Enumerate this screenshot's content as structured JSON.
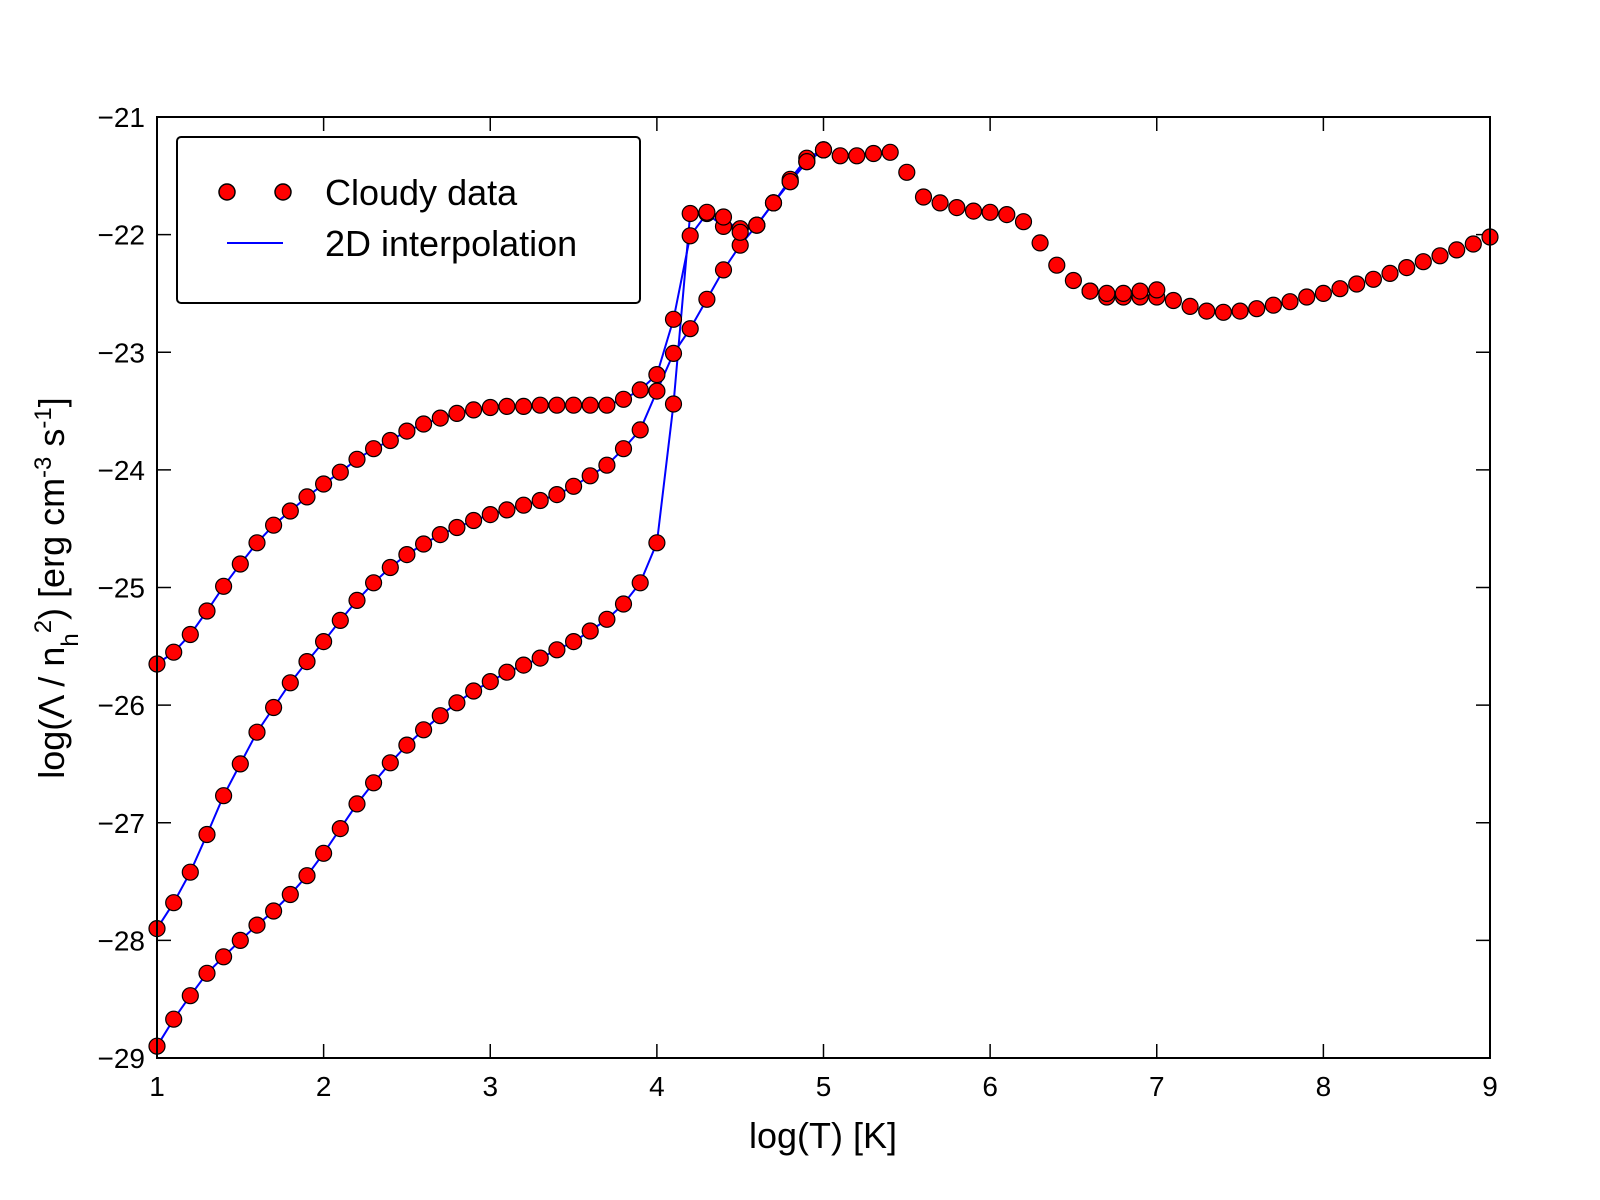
{
  "chart_data": {
    "type": "scatter",
    "xlabel": "log(T) [K]",
    "ylabel": {
      "parts": [
        {
          "text": "log(Λ / n",
          "shift": "normal"
        },
        {
          "text": "h",
          "shift": "sub"
        },
        {
          "text": "2",
          "shift": "super"
        },
        {
          "text": ") [erg cm",
          "shift": "normal"
        },
        {
          "text": "-3",
          "shift": "super"
        },
        {
          "text": " s",
          "shift": "normal"
        },
        {
          "text": "-1",
          "shift": "super"
        },
        {
          "text": "]",
          "shift": "normal"
        }
      ]
    },
    "xlim": [
      1,
      9
    ],
    "ylim": [
      -29,
      -21
    ],
    "xticks": [
      1,
      2,
      3,
      4,
      5,
      6,
      7,
      8,
      9
    ],
    "xtick_labels": [
      "1",
      "2",
      "3",
      "4",
      "5",
      "6",
      "7",
      "8",
      "9"
    ],
    "yticks": [
      -29,
      -28,
      -27,
      -26,
      -25,
      -24,
      -23,
      -22,
      -21
    ],
    "ytick_labels": [
      "−29",
      "−28",
      "−27",
      "−26",
      "−25",
      "−24",
      "−23",
      "−22",
      "−21"
    ],
    "legend": {
      "position": "top-left",
      "entries": [
        {
          "label": "Cloudy data",
          "marker": "circle",
          "color": "#ff0000"
        },
        {
          "label": "2D interpolation",
          "marker": "line",
          "color": "#0000ff"
        }
      ]
    },
    "colors": {
      "scatter": "#ff0000",
      "line": "#0000ff",
      "marker_edge": "#000000"
    },
    "series": [
      {
        "kind": "scatter+line",
        "x": [
          1.0,
          1.1,
          1.2,
          1.3,
          1.4,
          1.5,
          1.6,
          1.7,
          1.8,
          1.9,
          2.0,
          2.1,
          2.2,
          2.3,
          2.4,
          2.5,
          2.6,
          2.7,
          2.8,
          2.9,
          3.0,
          3.1,
          3.2,
          3.3,
          3.4,
          3.5,
          3.6,
          3.7,
          3.8,
          3.9,
          4.0,
          4.1,
          4.2,
          4.3,
          4.4,
          4.5,
          4.6,
          4.7,
          4.8,
          4.9,
          5.0
        ],
        "y": [
          -25.65,
          -25.55,
          -25.4,
          -25.2,
          -24.99,
          -24.8,
          -24.62,
          -24.47,
          -24.35,
          -24.23,
          -24.12,
          -24.02,
          -23.91,
          -23.82,
          -23.75,
          -23.67,
          -23.61,
          -23.56,
          -23.52,
          -23.49,
          -23.47,
          -23.46,
          -23.46,
          -23.45,
          -23.45,
          -23.45,
          -23.45,
          -23.45,
          -23.4,
          -23.32,
          -23.19,
          -22.72,
          -22.01,
          -21.82,
          -21.93,
          -21.95,
          -21.92,
          -21.73,
          -21.53,
          -21.35,
          -21.28
        ]
      },
      {
        "kind": "scatter+line",
        "x": [
          1.0,
          1.1,
          1.2,
          1.3,
          1.4,
          1.5,
          1.6,
          1.7,
          1.8,
          1.9,
          2.0,
          2.1,
          2.2,
          2.3,
          2.4,
          2.5,
          2.6,
          2.7,
          2.8,
          2.9,
          3.0,
          3.1,
          3.2,
          3.3,
          3.4,
          3.5,
          3.6,
          3.7,
          3.8,
          3.9,
          4.0,
          4.1,
          4.2,
          4.3,
          4.4,
          4.5,
          4.6,
          4.7,
          4.8,
          4.9,
          5.0
        ],
        "y": [
          -27.9,
          -27.68,
          -27.42,
          -27.1,
          -26.77,
          -26.5,
          -26.23,
          -26.02,
          -25.81,
          -25.63,
          -25.46,
          -25.28,
          -25.11,
          -24.96,
          -24.83,
          -24.72,
          -24.63,
          -24.55,
          -24.49,
          -24.43,
          -24.38,
          -24.34,
          -24.3,
          -24.26,
          -24.21,
          -24.14,
          -24.05,
          -23.96,
          -23.82,
          -23.66,
          -23.33,
          -23.01,
          -22.8,
          -22.55,
          -22.3,
          -22.09,
          -21.92,
          -21.73,
          -21.55,
          -21.38,
          -21.28
        ]
      },
      {
        "kind": "scatter+line",
        "x": [
          1.0,
          1.1,
          1.2,
          1.3,
          1.4,
          1.5,
          1.6,
          1.7,
          1.8,
          1.9,
          2.0,
          2.1,
          2.2,
          2.3,
          2.4,
          2.5,
          2.6,
          2.7,
          2.8,
          2.9,
          3.0,
          3.1,
          3.2,
          3.3,
          3.4,
          3.5,
          3.6,
          3.7,
          3.8,
          3.9,
          4.0,
          4.1,
          4.2,
          4.3,
          4.4,
          4.5,
          4.6,
          4.7,
          4.8,
          4.9,
          5.0
        ],
        "y": [
          -28.9,
          -28.67,
          -28.47,
          -28.28,
          -28.14,
          -28.0,
          -27.87,
          -27.75,
          -27.61,
          -27.45,
          -27.26,
          -27.05,
          -26.84,
          -26.66,
          -26.49,
          -26.34,
          -26.21,
          -26.09,
          -25.98,
          -25.88,
          -25.8,
          -25.72,
          -25.66,
          -25.6,
          -25.53,
          -25.46,
          -25.37,
          -25.27,
          -25.14,
          -24.96,
          -24.62,
          -23.44,
          -21.82,
          -21.81,
          -21.85,
          -21.98,
          -21.92,
          -21.73,
          -21.55,
          -21.38,
          -21.28
        ]
      },
      {
        "kind": "scatter",
        "x": [
          5.1,
          5.2,
          5.3,
          5.4,
          5.5,
          5.6,
          5.7,
          5.8,
          5.9,
          6.0,
          6.1,
          6.2,
          6.3,
          6.4,
          6.5,
          6.6,
          6.7,
          6.8,
          6.9,
          7.0,
          7.1,
          7.2,
          7.3,
          7.4,
          7.5,
          7.6,
          7.7,
          7.8,
          7.9,
          8.0,
          8.1,
          8.2,
          8.3,
          8.4,
          8.5,
          8.6,
          8.7,
          8.8,
          8.9,
          9.0
        ],
        "y": [
          -21.33,
          -21.33,
          -21.31,
          -21.3,
          -21.47,
          -21.68,
          -21.73,
          -21.77,
          -21.8,
          -21.81,
          -21.83,
          -21.89,
          -22.07,
          -22.26,
          -22.39,
          -22.48,
          -22.53,
          -22.53,
          -22.53,
          -22.53,
          -22.56,
          -22.61,
          -22.65,
          -22.66,
          -22.65,
          -22.63,
          -22.6,
          -22.57,
          -22.53,
          -22.5,
          -22.46,
          -22.42,
          -22.38,
          -22.33,
          -22.28,
          -22.23,
          -22.18,
          -22.13,
          -22.08,
          -22.02
        ]
      },
      {
        "kind": "scatter",
        "x": [
          6.6,
          6.7,
          6.8,
          6.9,
          7.0
        ],
        "y": [
          -22.48,
          -22.5,
          -22.5,
          -22.48,
          -22.47
        ]
      }
    ]
  }
}
